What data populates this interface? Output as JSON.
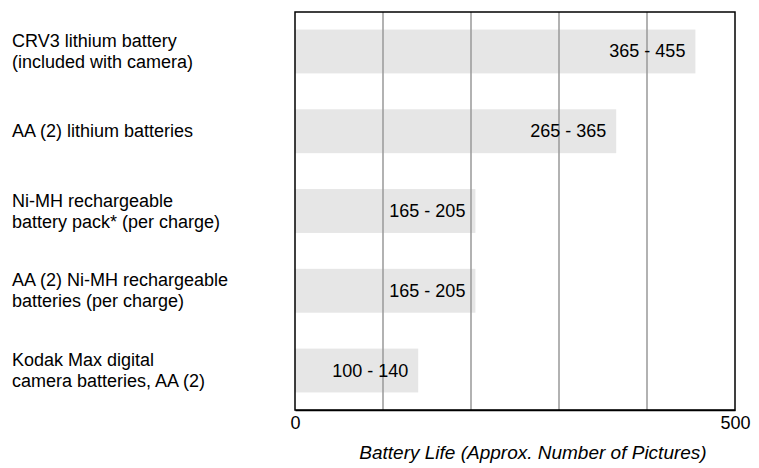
{
  "chart_data": {
    "type": "bar",
    "orientation": "horizontal",
    "categories": [
      "CRV3 lithium battery\n(included with camera)",
      "AA (2) lithium batteries",
      "Ni-MH rechargeable\nbattery pack* (per charge)",
      "AA (2) Ni-MH rechargeable\nbatteries (per charge)",
      "Kodak Max digital\ncamera batteries, AA (2)"
    ],
    "values": [
      455,
      365,
      205,
      205,
      140
    ],
    "value_labels": [
      "365 - 455",
      "265 - 365",
      "165 - 205",
      "165 - 205",
      "100 - 140"
    ],
    "data_labels": true,
    "color": "#e6e6e6",
    "x_label": "Battery Life (Approx. Number of Pictures)",
    "xlim": [
      0,
      500
    ],
    "xticks": [
      0,
      {
        "value": 100,
        "label": null
      },
      {
        "value": 200,
        "label": null
      },
      {
        "value": 300,
        "label": null
      },
      {
        "value": 400,
        "label": null
      },
      500
    ],
    "grid": true
  }
}
